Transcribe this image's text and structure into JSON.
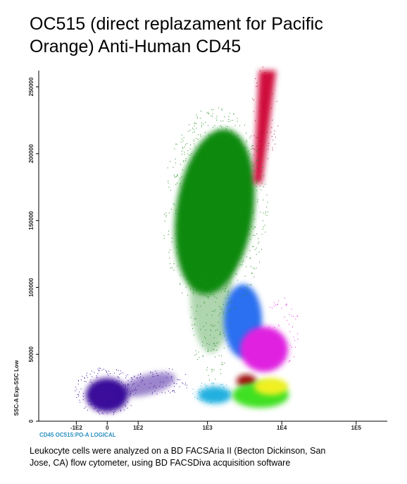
{
  "chart_data": {
    "type": "scatter",
    "title": [
      "OC515 (direct replazament for Pacific",
      "Orange) Anti-Human CD45"
    ],
    "x_label": "CD45 OC515:PO-A LOGICAL",
    "y_label": "SSC-A Exp-SSC Low",
    "x_scale": "biexponential",
    "xlim": [
      -370,
      262144
    ],
    "xticks": [
      {
        "value": -100,
        "label": "-1E2"
      },
      0,
      {
        "value": 100,
        "label": "1E2"
      },
      {
        "value": 1000,
        "label": "1E3"
      },
      {
        "value": 10000,
        "label": "1E4"
      },
      {
        "value": 100000,
        "label": "1E5"
      }
    ],
    "ylim": [
      0,
      262144
    ],
    "yticks": [
      0,
      50000,
      100000,
      150000,
      200000,
      250000
    ],
    "caption": [
      "Leukocyte cells were analyzed on a BD FACSAria II (Becton Dickinson, San",
      "Jose, CA) flow cytometer, using  BD FACSDiva acquisition software"
    ]
  }
}
